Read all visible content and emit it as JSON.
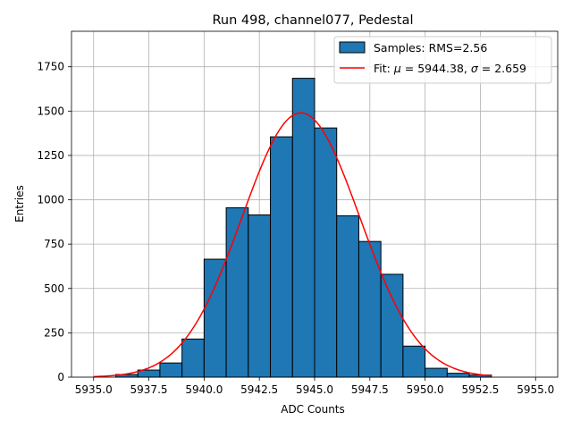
{
  "chart_data": {
    "type": "bar",
    "title": "Run 498, channel077, Pedestal",
    "xlabel": "ADC Counts",
    "ylabel": "Entries",
    "xlim": [
      5934.0,
      5956.0
    ],
    "ylim": [
      0,
      1950
    ],
    "grid": true,
    "legend_position": "top-right",
    "x_ticks": [
      5935.0,
      5937.5,
      5940.0,
      5942.5,
      5945.0,
      5947.5,
      5950.0,
      5952.5,
      5955.0
    ],
    "x_tick_labels": [
      "5935.0",
      "5937.5",
      "5940.0",
      "5942.5",
      "5945.0",
      "5947.5",
      "5950.0",
      "5952.5",
      "5955.0"
    ],
    "y_ticks": [
      0,
      250,
      500,
      750,
      1000,
      1250,
      1500,
      1750
    ],
    "y_tick_labels": [
      "0",
      "250",
      "500",
      "750",
      "1000",
      "1250",
      "1500",
      "1750"
    ],
    "bin_width": 1.0,
    "bins": [
      {
        "left": 5936,
        "count": 15
      },
      {
        "left": 5937,
        "count": 40
      },
      {
        "left": 5938,
        "count": 80
      },
      {
        "left": 5939,
        "count": 215
      },
      {
        "left": 5940,
        "count": 665
      },
      {
        "left": 5941,
        "count": 955
      },
      {
        "left": 5942,
        "count": 915
      },
      {
        "left": 5943,
        "count": 1355
      },
      {
        "left": 5944,
        "count": 1685
      },
      {
        "left": 5945,
        "count": 1405
      },
      {
        "left": 5946,
        "count": 910
      },
      {
        "left": 5947,
        "count": 765
      },
      {
        "left": 5948,
        "count": 580
      },
      {
        "left": 5949,
        "count": 175
      },
      {
        "left": 5950,
        "count": 50
      },
      {
        "left": 5951,
        "count": 22
      },
      {
        "left": 5952,
        "count": 12
      }
    ],
    "fit": {
      "mu": 5944.38,
      "sigma": 2.659,
      "amplitude": 1490,
      "x_range": [
        5935.0,
        5953.0
      ]
    },
    "series": [
      {
        "name": "Samples: RMS=2.56",
        "kind": "histogram",
        "color": "#1f77b4"
      },
      {
        "name": "Fit",
        "kind": "line",
        "color": "#ff0000"
      }
    ],
    "legend": {
      "samples_label": "Samples: RMS=2.56",
      "fit_prefix": "Fit: ",
      "mu_symbol": "μ",
      "mu_text": " = 5944.38, ",
      "sigma_symbol": "σ",
      "sigma_text": " = 2.659"
    }
  }
}
